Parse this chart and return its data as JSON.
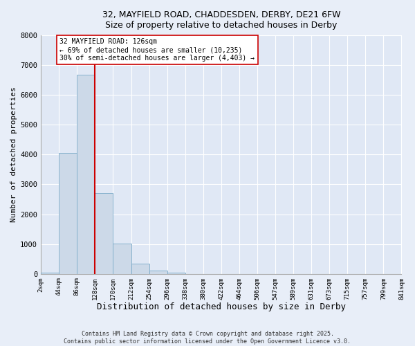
{
  "title_line1": "32, MAYFIELD ROAD, CHADDESDEN, DERBY, DE21 6FW",
  "title_line2": "Size of property relative to detached houses in Derby",
  "xlabel": "Distribution of detached houses by size in Derby",
  "ylabel": "Number of detached properties",
  "bar_color": "#ccd9e8",
  "bar_edge_color": "#7aaac8",
  "background_color": "#e8eef8",
  "plot_bg_color": "#e0e8f5",
  "grid_color": "#ffffff",
  "bin_edges": [
    2,
    44,
    86,
    128,
    170,
    212,
    254,
    296,
    338,
    380,
    422,
    464,
    506,
    547,
    589,
    631,
    673,
    715,
    757,
    799,
    841
  ],
  "bin_labels": [
    "2sqm",
    "44sqm",
    "86sqm",
    "128sqm",
    "170sqm",
    "212sqm",
    "254sqm",
    "296sqm",
    "338sqm",
    "380sqm",
    "422sqm",
    "464sqm",
    "506sqm",
    "547sqm",
    "589sqm",
    "631sqm",
    "673sqm",
    "715sqm",
    "757sqm",
    "799sqm",
    "841sqm"
  ],
  "bar_heights": [
    50,
    4050,
    6680,
    2700,
    1010,
    340,
    110,
    40,
    0,
    0,
    0,
    0,
    0,
    0,
    0,
    0,
    0,
    0,
    0,
    0
  ],
  "property_line_x": 128,
  "property_line_color": "#cc0000",
  "annotation_text": "32 MAYFIELD ROAD: 126sqm\n← 69% of detached houses are smaller (10,235)\n30% of semi-detached houses are larger (4,403) →",
  "annotation_box_edge": "#cc0000",
  "annotation_box_face": "#ffffff",
  "ylim": [
    0,
    8000
  ],
  "yticks": [
    0,
    1000,
    2000,
    3000,
    4000,
    5000,
    6000,
    7000,
    8000
  ],
  "footer_line1": "Contains HM Land Registry data © Crown copyright and database right 2025.",
  "footer_line2": "Contains public sector information licensed under the Open Government Licence v3.0."
}
